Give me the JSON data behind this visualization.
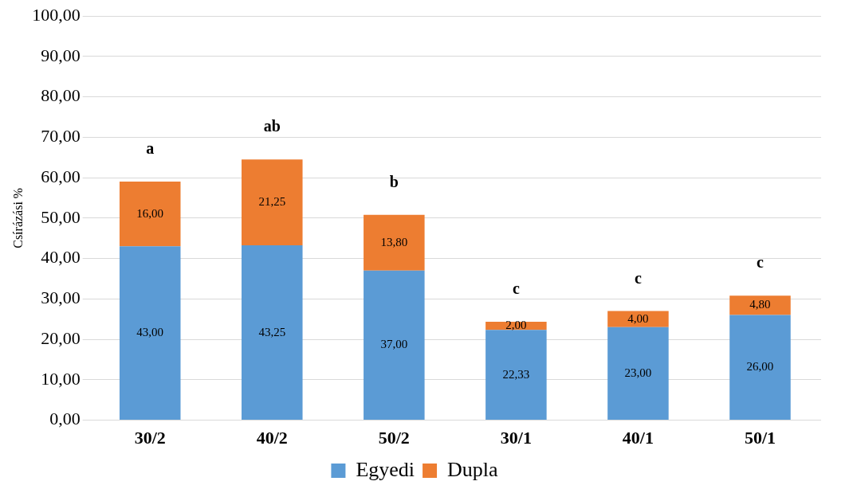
{
  "chart_data": {
    "type": "bar",
    "stacked": true,
    "ylabel": "Csírázási %",
    "categories": [
      "30/2",
      "40/2",
      "50/2",
      "30/1",
      "40/1",
      "50/1"
    ],
    "series": [
      {
        "name": "Egyedi",
        "color": "#5b9bd5",
        "values": [
          43,
          43.25,
          37,
          22.33,
          23,
          26
        ],
        "value_labels": [
          "43,00",
          "43,25",
          "37,00",
          "22,33",
          "23,00",
          "26,00"
        ]
      },
      {
        "name": "Dupla",
        "color": "#ed7d31",
        "values": [
          16,
          21.25,
          13.8,
          2,
          4,
          4.8
        ],
        "value_labels": [
          "16,00",
          "21,25",
          "13,80",
          "2,00",
          "4,00",
          "4,80"
        ]
      }
    ],
    "ylim": [
      0,
      100
    ],
    "yticks": [
      {
        "value": 0,
        "label": "0,00"
      },
      {
        "value": 10,
        "label": "10,00"
      },
      {
        "value": 20,
        "label": "20,00"
      },
      {
        "value": 30,
        "label": "30,00"
      },
      {
        "value": 40,
        "label": "40,00"
      },
      {
        "value": 50,
        "label": "50,00"
      },
      {
        "value": 60,
        "label": "60,00"
      },
      {
        "value": 70,
        "label": "70,00"
      },
      {
        "value": 80,
        "label": "80,00"
      },
      {
        "value": 90,
        "label": "90,00"
      },
      {
        "value": 100,
        "label": "100,00"
      }
    ],
    "annotations": [
      "a",
      "ab",
      "b",
      "c",
      "c",
      "c"
    ],
    "grid": "y",
    "legend": "bottom"
  }
}
